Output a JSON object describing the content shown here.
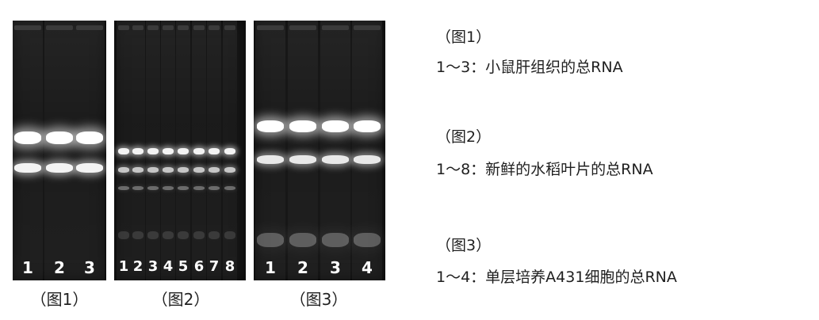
{
  "gels": [
    {
      "caption": "（图1）",
      "lane_labels": [
        "1",
        "2",
        "3"
      ]
    },
    {
      "caption": "（图2）",
      "lane_labels": [
        "1",
        "2",
        "3",
        "4",
        "5",
        "6",
        "7",
        "8"
      ]
    },
    {
      "caption": "（图3）",
      "lane_labels": [
        "1",
        "2",
        "3",
        "4"
      ]
    }
  ],
  "legend": [
    {
      "title": "（图1）",
      "desc": "1～3：小鼠肝组织的总RNA"
    },
    {
      "title": "（图2）",
      "desc": "1～8：新鲜的水稻叶片的总RNA"
    },
    {
      "title": "（图3）",
      "desc": "1～4：单层培养A431细胞的总RNA"
    }
  ]
}
